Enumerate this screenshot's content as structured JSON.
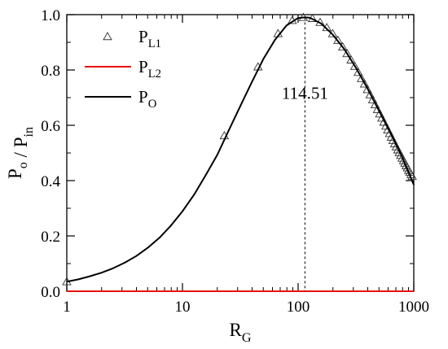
{
  "chart_data": {
    "type": "line",
    "xscale": "log",
    "xlim": [
      1,
      1000
    ],
    "ylim": [
      0.0,
      1.0
    ],
    "xlabel": "R",
    "xlabel_sub": "G",
    "ylabel_parts": [
      {
        "text": "P",
        "sub": "o"
      },
      {
        "text": " / ",
        "sub": ""
      },
      {
        "text": "P",
        "sub": "in"
      }
    ],
    "x_ticks": [
      {
        "value": 1,
        "label": "1"
      },
      {
        "value": 10,
        "label": "10"
      },
      {
        "value": 100,
        "label": "100"
      },
      {
        "value": 1000,
        "label": "1000"
      }
    ],
    "y_ticks": [
      {
        "value": 0.0,
        "label": "0.0"
      },
      {
        "value": 0.2,
        "label": "0.2"
      },
      {
        "value": 0.4,
        "label": "0.4"
      },
      {
        "value": 0.6,
        "label": "0.6"
      },
      {
        "value": 0.8,
        "label": "0.8"
      },
      {
        "value": 1.0,
        "label": "1.0"
      }
    ],
    "grid": false,
    "legend_position": "top-left",
    "series": [
      {
        "name": "P",
        "name_sub": "L1",
        "style": "markers",
        "marker": "triangle-open",
        "color": "#333333",
        "x": [
          1,
          23,
          45,
          67,
          89,
          111,
          133,
          155,
          177,
          199,
          221,
          243,
          265,
          287,
          309,
          331,
          353,
          375,
          397,
          419,
          441,
          463,
          485,
          507,
          529,
          551,
          573,
          595,
          617,
          639,
          661,
          683,
          705,
          727,
          749,
          771,
          793,
          815,
          837,
          859,
          881,
          903,
          925,
          947,
          969
        ],
        "y": [
          0.0345,
          0.562,
          0.811,
          0.931,
          0.979,
          0.99,
          0.986,
          0.972,
          0.953,
          0.931,
          0.907,
          0.883,
          0.859,
          0.836,
          0.813,
          0.791,
          0.769,
          0.749,
          0.729,
          0.71,
          0.692,
          0.674,
          0.657,
          0.641,
          0.626,
          0.611,
          0.597,
          0.583,
          0.57,
          0.557,
          0.545,
          0.533,
          0.522,
          0.511,
          0.501,
          0.491,
          0.481,
          0.472,
          0.463,
          0.454,
          0.446,
          0.437,
          0.43,
          0.422,
          0.415
        ]
      },
      {
        "name": "P",
        "name_sub": "L2",
        "style": "line",
        "color": "#e8120c",
        "x": [
          1,
          1000
        ],
        "y": [
          0.0,
          0.0
        ]
      },
      {
        "name": "P",
        "name_sub": "O",
        "style": "line",
        "color": "#000000",
        "x": [
          1,
          1.26,
          1.58,
          2,
          2.51,
          3.16,
          3.98,
          5.01,
          6.31,
          7.94,
          10,
          12.6,
          15.8,
          20,
          25.1,
          31.6,
          39.8,
          50.1,
          63.1,
          79.4,
          100,
          114.51,
          126,
          158,
          200,
          251,
          316,
          398,
          501,
          631,
          794,
          1000
        ],
        "y": [
          0.0345,
          0.043,
          0.054,
          0.067,
          0.083,
          0.103,
          0.127,
          0.157,
          0.193,
          0.237,
          0.289,
          0.349,
          0.418,
          0.493,
          0.581,
          0.669,
          0.756,
          0.84,
          0.909,
          0.961,
          0.988,
          0.99,
          0.989,
          0.968,
          0.927,
          0.875,
          0.808,
          0.733,
          0.652,
          0.571,
          0.485,
          0.385
        ]
      }
    ],
    "annotations": [
      {
        "type": "vline",
        "x": 114.51,
        "style": "dashed",
        "label": "114.51"
      }
    ]
  }
}
